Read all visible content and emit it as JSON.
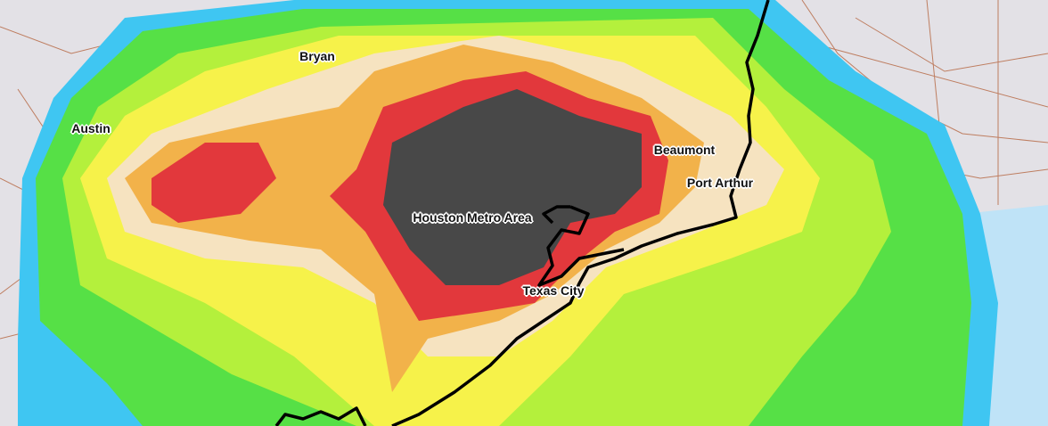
{
  "map": {
    "colors": {
      "land": "#e3e1e6",
      "water": "#bfe3f7",
      "roads": "#b5653f",
      "coastline": "#000000",
      "rain_levels": [
        "#3fc6f2",
        "#56e046",
        "#b4f03c",
        "#f6f24a",
        "#f6e3c0",
        "#f2b24a",
        "#e2383c",
        "#484848"
      ]
    },
    "labels": [
      {
        "name": "Bryan"
      },
      {
        "name": "Austin"
      },
      {
        "name": "Beaumont"
      },
      {
        "name": "Port Arthur"
      },
      {
        "name": "Houston Metro Area"
      },
      {
        "name": "Texas City"
      }
    ]
  }
}
